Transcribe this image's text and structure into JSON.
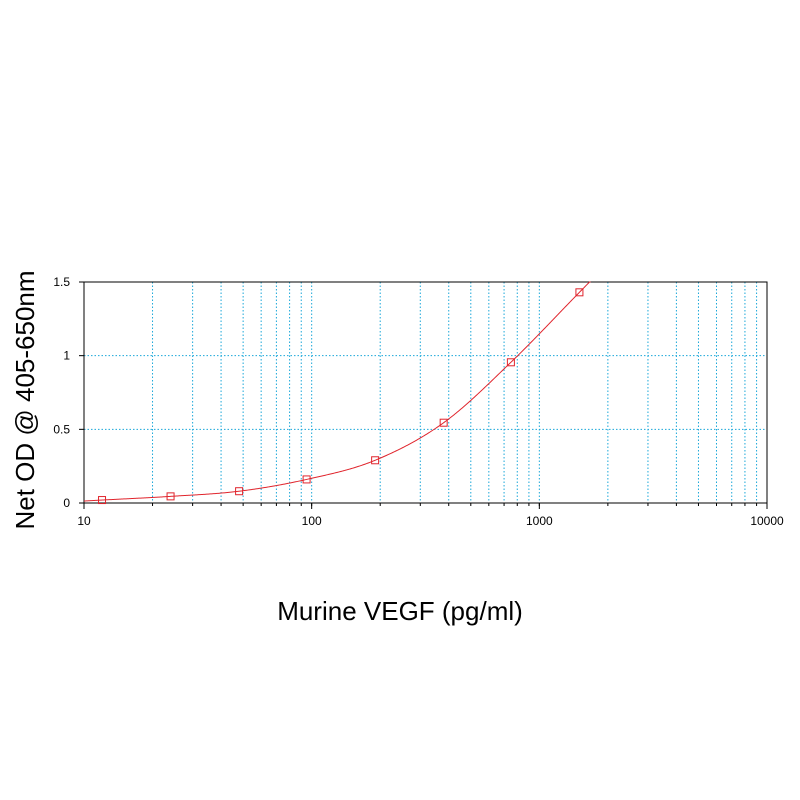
{
  "chart_data": {
    "type": "scatter",
    "title": "",
    "xlabel": "Murine VEGF (pg/ml)",
    "ylabel": "Net OD @ 405-650nm",
    "x_scale": "log",
    "xlim": [
      10,
      10000
    ],
    "ylim": [
      0,
      1.5
    ],
    "x_ticks": [
      10,
      100,
      1000,
      10000
    ],
    "x_tick_labels": [
      "10",
      "100",
      "1000",
      "10000"
    ],
    "y_ticks": [
      0,
      0.5,
      1,
      1.5
    ],
    "y_tick_labels": [
      "0",
      "0.5",
      "1",
      "1.5"
    ],
    "grid": true,
    "legend": "none",
    "series": [
      {
        "x": [
          12,
          24,
          48,
          95,
          190,
          380,
          750,
          1500
        ],
        "y": [
          0.02,
          0.045,
          0.08,
          0.16,
          0.29,
          0.545,
          0.955,
          1.43
        ],
        "marker": "open-square",
        "fit_curve": true
      }
    ],
    "colors": {
      "series": "#e0242c",
      "grid": "#1aa7d9",
      "axis": "#000000"
    }
  }
}
